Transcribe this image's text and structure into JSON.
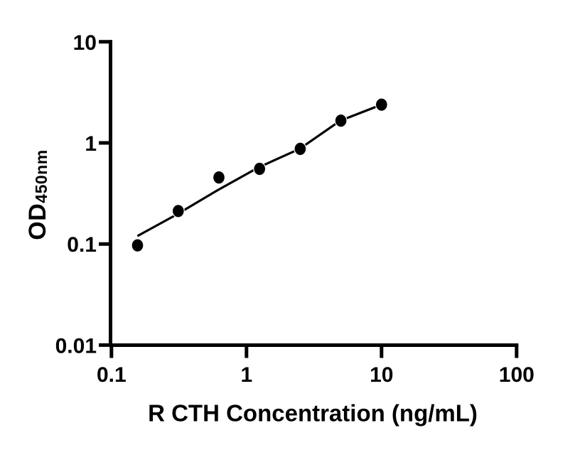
{
  "figure": {
    "background_color": "#ffffff",
    "foreground_color": "#000000",
    "x_axis_title": "R CTH Concentration (ng/mL)",
    "y_axis_title_main": "OD",
    "y_axis_title_sub": "450nm"
  },
  "chart_data": {
    "type": "scatter",
    "title": "",
    "xlabel": "R CTH Concentration (ng/mL)",
    "ylabel": "OD450nm",
    "x_scale": "log10",
    "y_scale": "log10",
    "xlim": [
      0.1,
      100
    ],
    "ylim": [
      0.01,
      10
    ],
    "x_ticks": [
      0.1,
      1,
      10,
      100
    ],
    "x_tick_labels": [
      "0.1",
      "1",
      "10",
      "100"
    ],
    "y_ticks": [
      0.01,
      0.1,
      1,
      10
    ],
    "y_tick_labels": [
      "0.01",
      "0.1",
      "1",
      "10"
    ],
    "grid": false,
    "legend": "none",
    "marker_color": "#000000",
    "marker_edge_color": "#ffffff",
    "line_color": "#000000",
    "series": [
      {
        "name": "standard-curve-points",
        "type": "scatter",
        "marker": "filled-circle",
        "points": [
          [
            0.156,
            0.097
          ],
          [
            0.3125,
            0.212
          ],
          [
            0.625,
            0.455
          ],
          [
            1.25,
            0.554
          ],
          [
            2.5,
            0.873
          ],
          [
            5,
            1.66
          ],
          [
            10,
            2.39
          ]
        ]
      },
      {
        "name": "fit-line",
        "type": "line",
        "points": [
          [
            0.158,
            0.121
          ],
          [
            0.305,
            0.196
          ],
          [
            0.61,
            0.34
          ],
          [
            1.23,
            0.573
          ],
          [
            2.48,
            0.874
          ],
          [
            4.95,
            1.66
          ],
          [
            10,
            2.39
          ]
        ]
      }
    ]
  }
}
